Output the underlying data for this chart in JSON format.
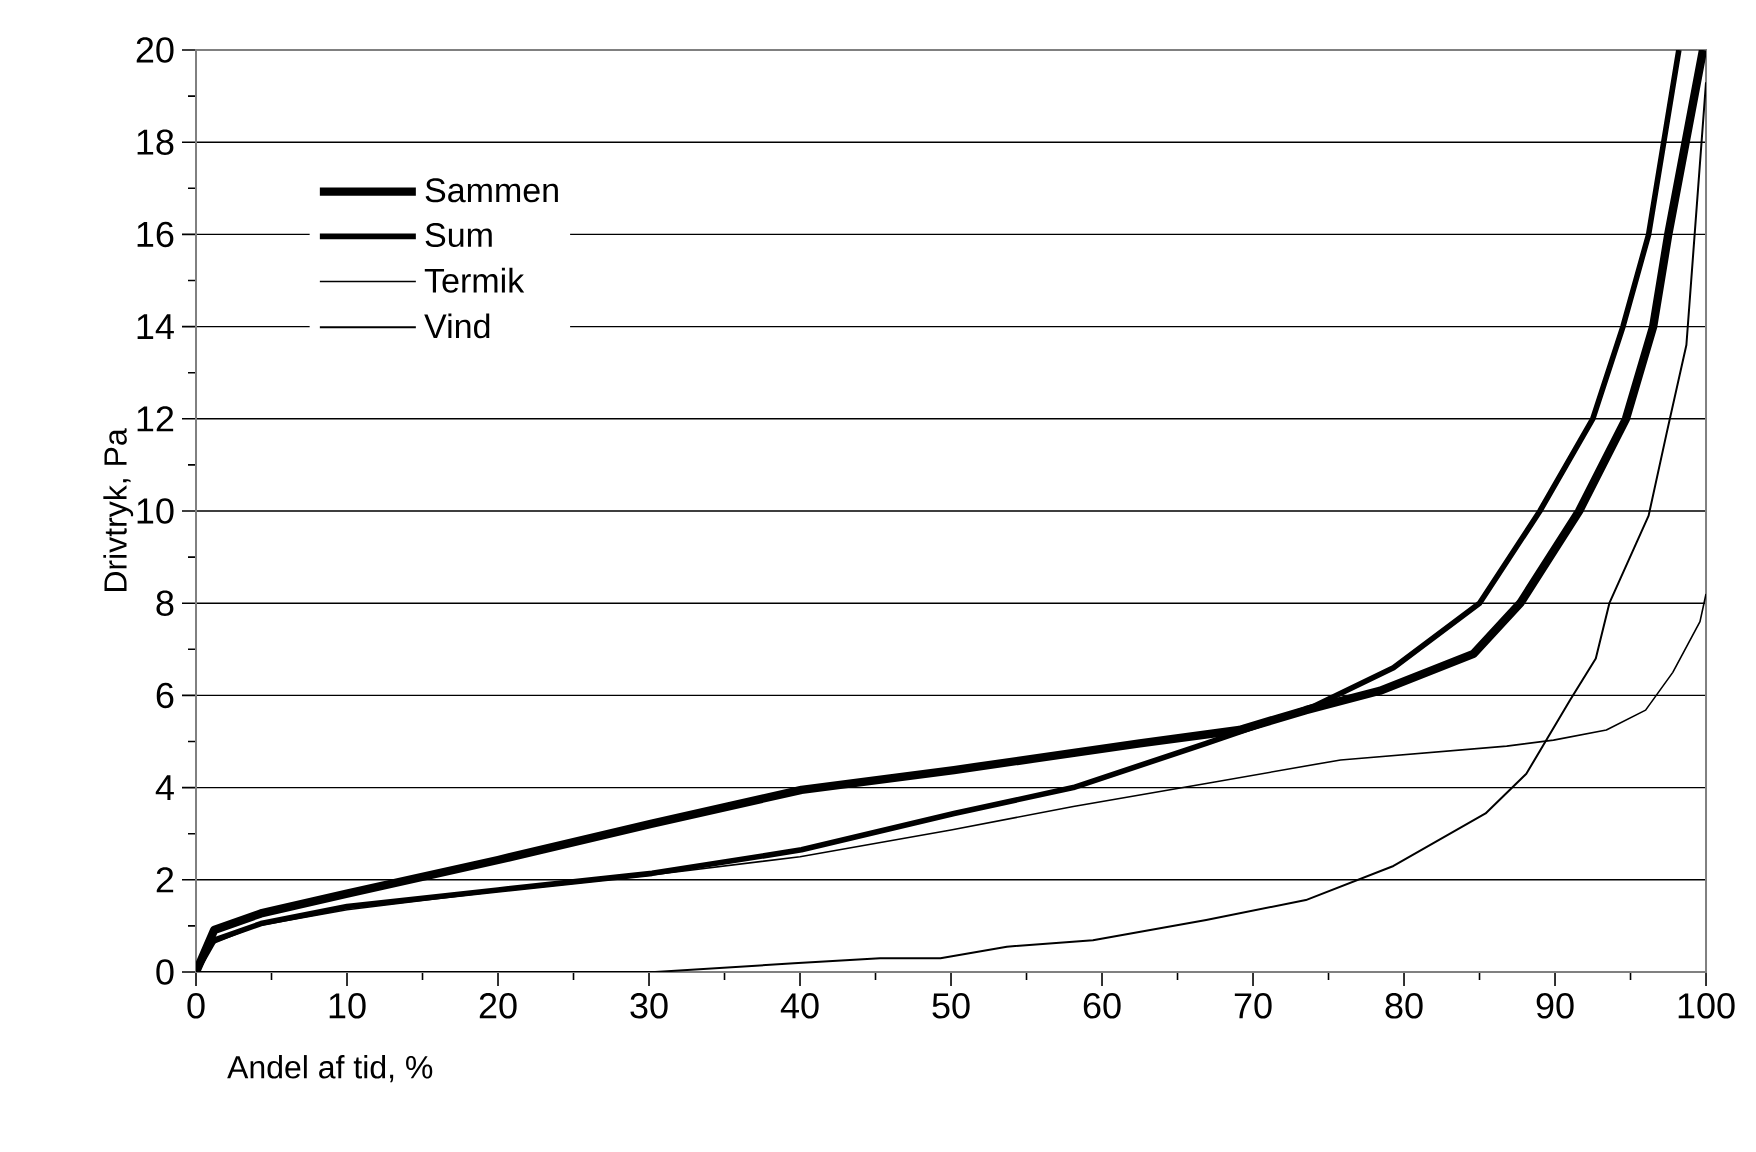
{
  "chart_data": {
    "type": "line",
    "xlabel": "Andel af tid, %",
    "ylabel": "Drivtryk, Pa",
    "xlim": [
      0,
      100
    ],
    "ylim": [
      0,
      20
    ],
    "xticks": [
      0,
      10,
      20,
      30,
      40,
      50,
      60,
      70,
      80,
      90,
      100
    ],
    "yticks": [
      0,
      2,
      4,
      6,
      8,
      10,
      12,
      14,
      16,
      18,
      20
    ],
    "grid": "y",
    "legend": "top left",
    "marker": "none",
    "line_style": "solid",
    "series": [
      {
        "name": "Sammen",
        "color": "#000000",
        "x": [
          0,
          1.2,
          4.3,
          10,
          20,
          30.2,
          40.1,
          50.2,
          62.5,
          69.1,
          73.5,
          78.4,
          84.6,
          87.7,
          91.6,
          94.7,
          96.5,
          97.5,
          99.8
        ],
        "values": [
          0,
          0.91,
          1.27,
          1.7,
          2.43,
          3.22,
          3.95,
          4.38,
          4.96,
          5.25,
          5.68,
          6.1,
          6.9,
          8,
          10,
          12,
          14,
          16,
          20
        ]
      },
      {
        "name": "Sum",
        "color": "#000000",
        "x": [
          0,
          1.2,
          4.3,
          10,
          20,
          30.2,
          40.1,
          50.2,
          58.1,
          66.9,
          74,
          79.3,
          85,
          89,
          92.5,
          94.5,
          96.2,
          98.2
        ],
        "values": [
          0,
          0.69,
          1.05,
          1.42,
          1.78,
          2.14,
          2.65,
          3.44,
          4.0,
          4.96,
          5.76,
          6.6,
          8,
          10,
          12,
          14,
          16,
          20
        ]
      },
      {
        "name": "Termik",
        "color": "#000000",
        "x": [
          0,
          1,
          4,
          10,
          20,
          30,
          40,
          50,
          58.1,
          66.9,
          75.8,
          86.8,
          89.9,
          93.4,
          96,
          97.8,
          99.6,
          100
        ],
        "values": [
          0,
          0.6,
          1.0,
          1.35,
          1.75,
          2.1,
          2.5,
          3.08,
          3.59,
          4.09,
          4.6,
          4.9,
          5.03,
          5.25,
          5.68,
          6.5,
          7.6,
          8.2
        ]
      },
      {
        "name": "Vind",
        "color": "#000000",
        "x": [
          0,
          30.4,
          39.6,
          45.3,
          49.3,
          53.7,
          59.4,
          66.9,
          73.5,
          79.3,
          85.4,
          88.1,
          91,
          92.7,
          93.6,
          96.2,
          97.4,
          98.7,
          100
        ],
        "values": [
          0,
          0,
          0.19,
          0.3,
          0.3,
          0.55,
          0.69,
          1.13,
          1.56,
          2.3,
          3.44,
          4.3,
          5.9,
          6.8,
          8,
          9.9,
          11.7,
          13.6,
          19.3
        ]
      }
    ]
  }
}
